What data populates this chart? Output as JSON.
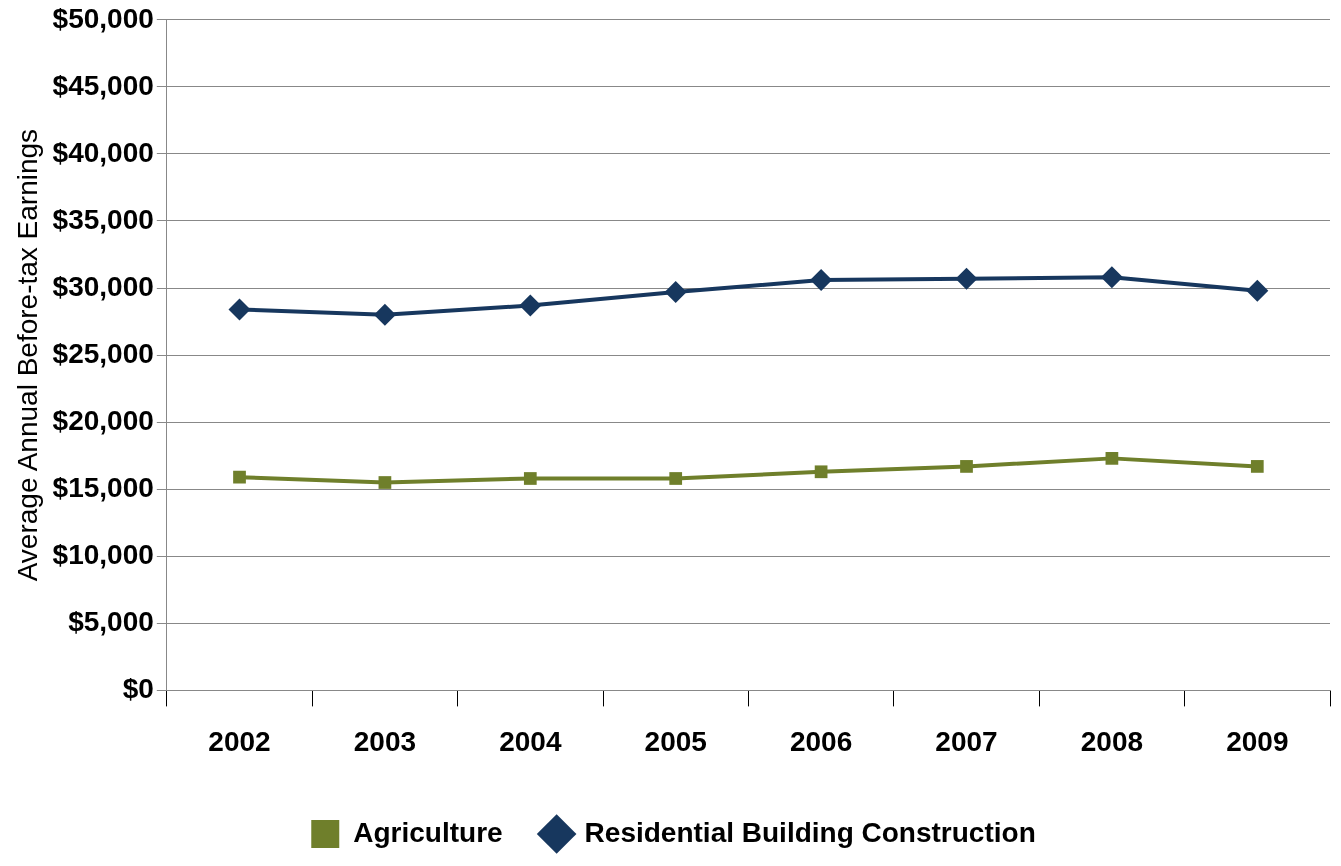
{
  "chart_data": {
    "type": "line",
    "ylabel": "Average Annual Before-tax Earnings",
    "categories": [
      "2002",
      "2003",
      "2004",
      "2005",
      "2006",
      "2007",
      "2008",
      "2009"
    ],
    "series": [
      {
        "name": "Agriculture",
        "color": "#6f7f2b",
        "marker": "square",
        "values": [
          15900,
          15500,
          15800,
          15800,
          16300,
          16700,
          17300,
          16700
        ]
      },
      {
        "name": "Residential Building Construction",
        "color": "#17375e",
        "marker": "diamond",
        "values": [
          28400,
          28000,
          28700,
          29700,
          30600,
          30700,
          30800,
          29800
        ]
      }
    ],
    "ylim": [
      0,
      50000
    ],
    "yticks": [
      {
        "value": 0,
        "label": "$0"
      },
      {
        "value": 5000,
        "label": "$5,000"
      },
      {
        "value": 10000,
        "label": "$10,000"
      },
      {
        "value": 15000,
        "label": "$15,000"
      },
      {
        "value": 20000,
        "label": "$20,000"
      },
      {
        "value": 25000,
        "label": "$25,000"
      },
      {
        "value": 30000,
        "label": "$30,000"
      },
      {
        "value": 35000,
        "label": "$35,000"
      },
      {
        "value": 40000,
        "label": "$40,000"
      },
      {
        "value": 45000,
        "label": "$45,000"
      },
      {
        "value": 50000,
        "label": "$50,000"
      }
    ],
    "grid": "y",
    "legend": "bottom",
    "line_style": "solid"
  }
}
